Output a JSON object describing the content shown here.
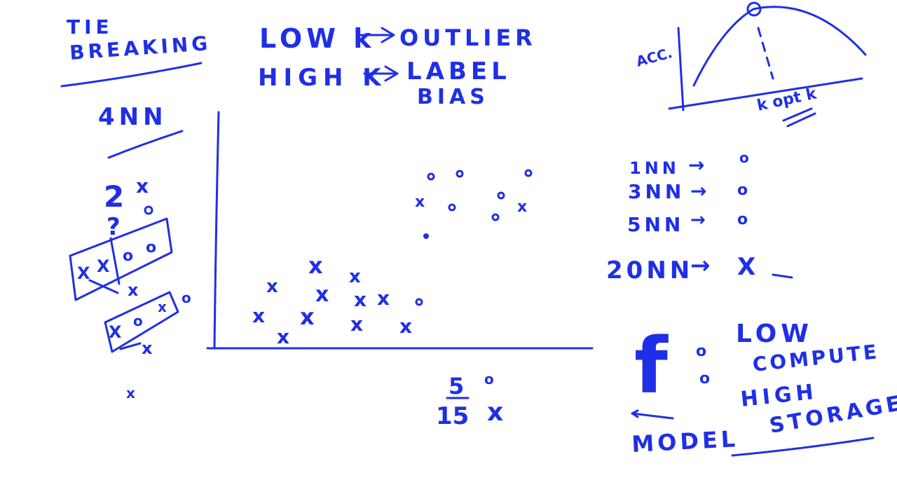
{
  "board": {
    "ink_color": "#1f2fe6",
    "background": "#ffffff"
  },
  "tie_breaking": {
    "title_line1": "TIE",
    "title_line2": "BREAKING",
    "knn_label": "4NN",
    "count_two": "2",
    "count_symbol": "x",
    "count_q": "?",
    "box1": [
      "X",
      "X",
      "o",
      "o"
    ],
    "box2": [
      "X",
      "o",
      "x"
    ],
    "loose_marks": [
      "x",
      "o",
      "x",
      "o",
      "x"
    ]
  },
  "k_effects": {
    "low_k": "LOW k",
    "low_k_result": "OUTLIER",
    "high_k": "HIGH K",
    "high_k_result_line1": "LABEL",
    "high_k_result_line2": "BIAS"
  },
  "scatter": {
    "cross_marks": "x",
    "circle_marks": "o",
    "fraction_numerator": "5",
    "fraction_denominator": "15",
    "fraction_o": "o",
    "fraction_x": "x"
  },
  "accuracy_plot": {
    "ylabel": "ACC.",
    "xlabel": "k opt k"
  },
  "knn_results": [
    {
      "k": "1NN",
      "arrow": "→",
      "label": "o"
    },
    {
      "k": "3NN",
      "arrow": "→",
      "label": "o"
    },
    {
      "k": "5NN",
      "arrow": "→",
      "label": "o"
    },
    {
      "k": "20NN",
      "arrow": "→",
      "label": "X"
    }
  ],
  "model_notes": {
    "f_symbol": "f",
    "o1": "o",
    "o2": "o",
    "low": "LOW",
    "compute": "COMPUTE",
    "high": "HIGH",
    "storage": "STORAGE",
    "model": "MODEL"
  }
}
